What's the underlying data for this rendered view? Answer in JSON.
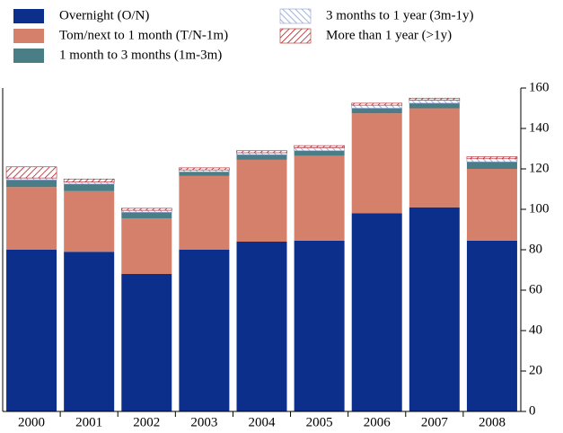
{
  "chart_data": {
    "type": "bar",
    "stacked": true,
    "categories": [
      "2000",
      "2001",
      "2002",
      "2003",
      "2004",
      "2005",
      "2006",
      "2007",
      "2008"
    ],
    "series": [
      {
        "name": "Overnight (O/N)",
        "color": "#0c2f8c",
        "values": [
          80,
          79,
          68,
          80,
          84,
          84.5,
          98,
          101,
          84.5
        ]
      },
      {
        "name": "Tom/next to 1 month (T/N-1m)",
        "color": "#d4806a",
        "values": [
          31,
          30,
          27.5,
          36.5,
          40.5,
          42,
          49.5,
          49,
          35.5
        ]
      },
      {
        "name": "1 month to 3 months (1m-3m)",
        "color": "#4a7d85",
        "values": [
          3.5,
          3.5,
          3,
          2,
          2.5,
          2.5,
          2.5,
          2.5,
          3.5
        ]
      },
      {
        "name": "3 months to 1 year (3m-1y)",
        "color": "#8a9fd4",
        "pattern": "hatch",
        "values": [
          1,
          1,
          1,
          1,
          1,
          1.5,
          1.5,
          1.5,
          1.5
        ]
      },
      {
        "name": "More than 1 year (>1y)",
        "color": "#b01e24",
        "pattern": "hatch",
        "values": [
          5.5,
          1.5,
          1,
          1,
          1,
          1,
          1,
          1,
          1
        ]
      }
    ],
    "ylim": [
      0,
      160
    ],
    "yticks": [
      0,
      20,
      40,
      60,
      80,
      100,
      120,
      140,
      160
    ],
    "y_axis_side": "right"
  }
}
